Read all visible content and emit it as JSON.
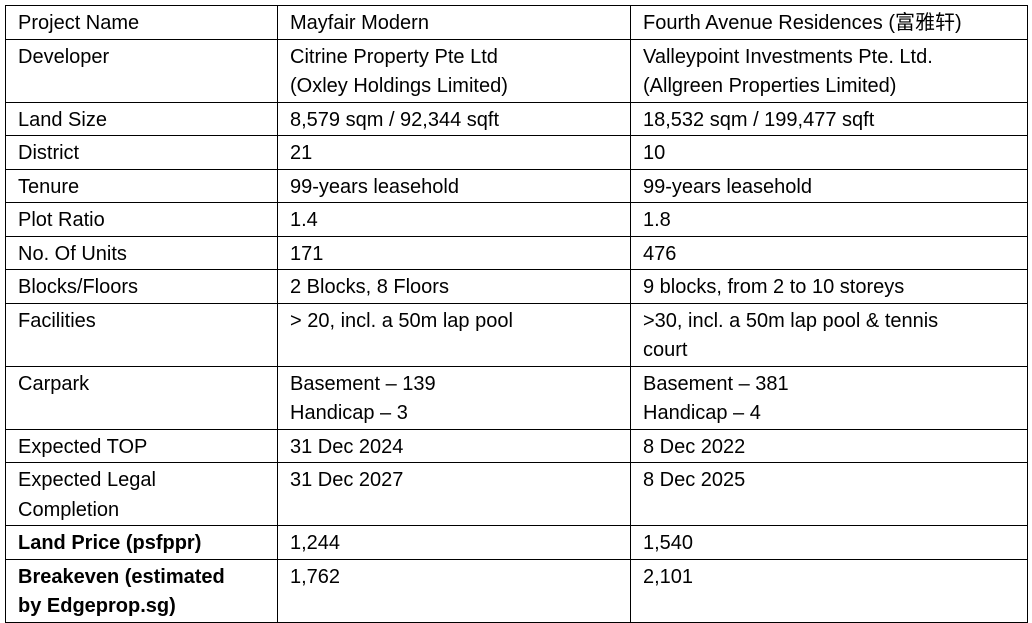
{
  "table": {
    "rows": [
      {
        "label": "Project Name",
        "a": "Mayfair Modern",
        "b": "Fourth Avenue Residences (富雅轩)",
        "bold": false
      },
      {
        "label": "Developer",
        "a": "Citrine Property Pte Ltd\n(Oxley Holdings Limited)",
        "b": "Valleypoint Investments Pte. Ltd.\n(Allgreen Properties Limited)",
        "bold": false
      },
      {
        "label": "Land Size",
        "a": "8,579 sqm / 92,344 sqft",
        "b": "18,532 sqm / 199,477 sqft",
        "bold": false
      },
      {
        "label": "District",
        "a": "21",
        "b": "10",
        "bold": false
      },
      {
        "label": "Tenure",
        "a": "99-years leasehold",
        "b": "99-years leasehold",
        "bold": false
      },
      {
        "label": "Plot Ratio",
        "a": "1.4",
        "b": "1.8",
        "bold": false
      },
      {
        "label": "No. Of Units",
        "a": "171",
        "b": "476",
        "bold": false
      },
      {
        "label": "Blocks/Floors",
        "a": "2 Blocks, 8 Floors",
        "b": "9 blocks, from 2 to 10 storeys",
        "bold": false
      },
      {
        "label": "Facilities",
        "a": "> 20, incl. a 50m lap pool",
        "b": ">30, incl. a 50m lap pool & tennis\ncourt",
        "bold": false
      },
      {
        "label": "Carpark",
        "a": "Basement – 139\nHandicap – 3",
        "b": "Basement – 381\nHandicap – 4",
        "bold": false
      },
      {
        "label": "Expected TOP",
        "a": "31 Dec 2024",
        "b": "8 Dec 2022",
        "bold": false
      },
      {
        "label": "Expected Legal\nCompletion",
        "a": "31 Dec 2027",
        "b": "8 Dec 2025",
        "bold": false
      },
      {
        "label": "Land Price (psfppr)",
        "a": "1,244",
        "b": "1,540",
        "bold": true
      },
      {
        "label": "Breakeven (estimated\nby Edgeprop.sg)",
        "a": "1,762",
        "b": "2,101",
        "bold": true
      }
    ]
  }
}
